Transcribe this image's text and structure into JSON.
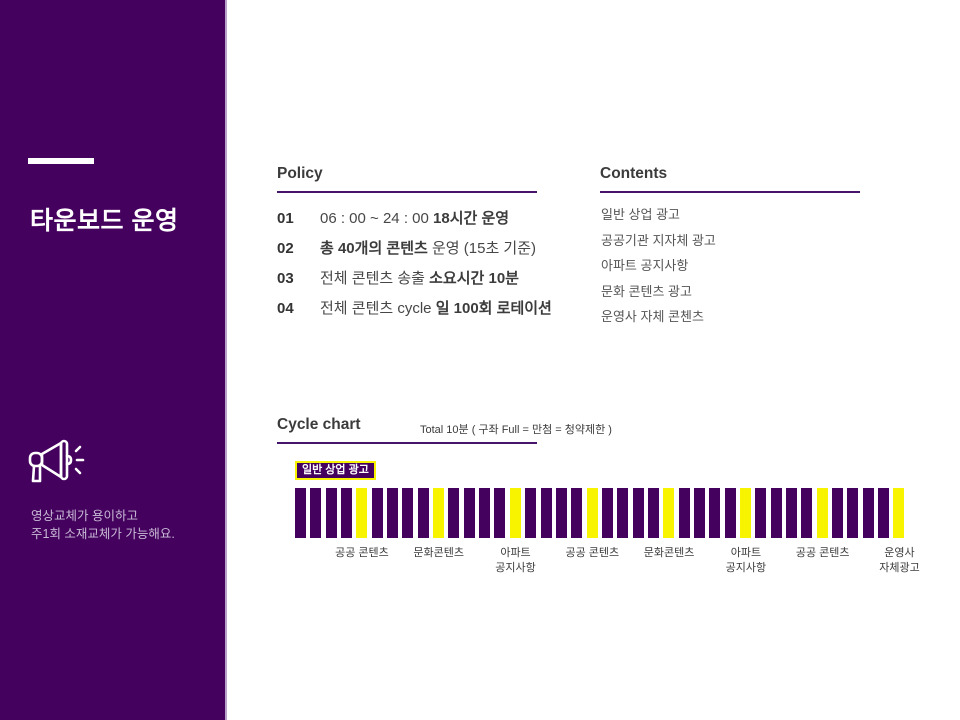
{
  "sidebar": {
    "title": "타운보드 운영",
    "note": "영상교체가 용이하고\n주1회 소재교체가 가능해요.",
    "bg_color": "#45015e"
  },
  "policy": {
    "heading": "Policy",
    "items": [
      {
        "num": "01",
        "pre": "06 : 00 ~ 24 : 00 ",
        "bold": "18시간 운영",
        "post": ""
      },
      {
        "num": "02",
        "pre": "",
        "bold": "총 40개의 콘텐츠",
        "post": " 운영 (15초 기준)"
      },
      {
        "num": "03",
        "pre": "전체 콘텐츠 송출 ",
        "bold": "소요시간 10분",
        "post": ""
      },
      {
        "num": "04",
        "pre": "전체 콘텐츠 cycle ",
        "bold": "일 100회 로테이션",
        "post": ""
      }
    ]
  },
  "contents": {
    "heading": "Contents",
    "items": [
      "일반 상업 광고",
      "공공기관 지자체 광고",
      "아파트 공지사항",
      "문화 콘텐츠 광고",
      "운영사 자체 콘첸츠"
    ]
  },
  "chart_data": {
    "type": "bar",
    "title": "Cycle chart",
    "subtitle": "Total 10분 ( 구좌 Full = 만첨 = 청약제한 )",
    "legend_label": "일반 상업 광고",
    "total_slots": 40,
    "slot_seconds": 15,
    "colors": {
      "purple": "#45015e",
      "yellow": "#f8f400"
    },
    "slot_pattern": [
      "P",
      "P",
      "P",
      "P",
      "Y",
      "P",
      "P",
      "P",
      "P",
      "Y",
      "P",
      "P",
      "P",
      "P",
      "Y",
      "P",
      "P",
      "P",
      "P",
      "Y",
      "P",
      "P",
      "P",
      "P",
      "Y",
      "P",
      "P",
      "P",
      "P",
      "Y",
      "P",
      "P",
      "P",
      "P",
      "Y",
      "P",
      "P",
      "P",
      "P",
      "Y"
    ],
    "yellow_slot_labels": [
      "공공 콘텐츠",
      "문화콘텐츠",
      "아파트\n공지사항",
      "공공 콘텐츠",
      "문화콘텐츠",
      "아파트\n공지사항",
      "공공 콘텐츠",
      "운영사\n자체광고"
    ]
  }
}
